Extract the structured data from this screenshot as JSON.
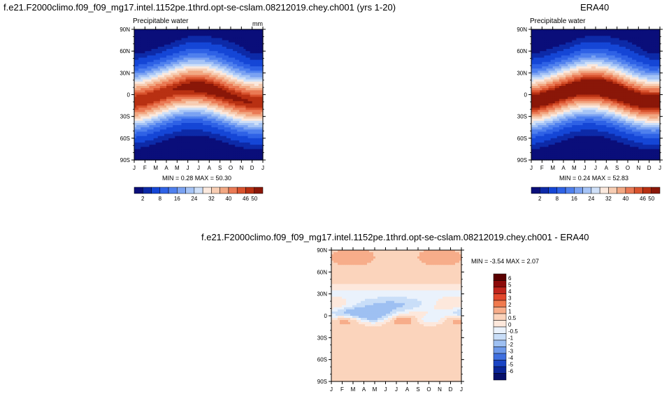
{
  "panels": {
    "model": {
      "title": "f.e21.F2000climo.f09_f09_mg17.intel.1152pe.1thrd.opt-se-cslam.08212019.chey.ch001 (yrs 1-20)",
      "left_label": "Precipitable water",
      "right_label": "mm",
      "minmax": "MIN =   0.28 MAX =  50.30"
    },
    "obs": {
      "title": "ERA40",
      "left_label": "Precipitable water",
      "minmax": "MIN =   0.24 MAX =  52.83"
    },
    "diff": {
      "title": "f.e21.F2000climo.f09_f09_mg17.intel.1152pe.1thrd.opt-se-cslam.08212019.chey.ch001 - ERA40",
      "minmax": "MIN =  -3.54 MAX =   2.07"
    }
  },
  "chart_data": [
    {
      "type": "heatmap",
      "title": "f.e21.F2000climo.f09_f09_mg17.intel.1152pe.1thrd.opt-se-cslam.08212019.chey.ch001 (yrs 1-20)",
      "x_tick_labels": [
        "J",
        "F",
        "M",
        "A",
        "M",
        "J",
        "J",
        "A",
        "S",
        "O",
        "N",
        "D",
        "J"
      ],
      "y_tick_labels": [
        "90N",
        "60N",
        "30N",
        "0",
        "30S",
        "60S",
        "90S"
      ],
      "colorbar_labels": [
        "2",
        "8",
        "16",
        "24",
        "32",
        "40",
        "46",
        "50"
      ],
      "min": 0.28,
      "max": 50.3,
      "units": "mm"
    },
    {
      "type": "heatmap",
      "title": "ERA40",
      "x_tick_labels": [
        "J",
        "F",
        "M",
        "A",
        "M",
        "J",
        "J",
        "A",
        "S",
        "O",
        "N",
        "D",
        "J"
      ],
      "y_tick_labels": [
        "90N",
        "60N",
        "30N",
        "0",
        "30S",
        "60S",
        "90S"
      ],
      "colorbar_labels": [
        "2",
        "8",
        "16",
        "24",
        "32",
        "40",
        "46",
        "50"
      ],
      "min": 0.24,
      "max": 52.83
    },
    {
      "type": "heatmap",
      "title": "f.e21.F2000climo.f09_f09_mg17.intel.1152pe.1thrd.opt-se-cslam.08212019.chey.ch001 - ERA40",
      "x_tick_labels": [
        "J",
        "F",
        "M",
        "A",
        "M",
        "J",
        "J",
        "A",
        "S",
        "O",
        "N",
        "D",
        "J"
      ],
      "y_tick_labels": [
        "90N",
        "60N",
        "30N",
        "0",
        "30S",
        "60S",
        "90S"
      ],
      "colorbar_labels": [
        "6",
        "5",
        "4",
        "3",
        "2",
        "1",
        "0.5",
        "0",
        "-0.5",
        "-1",
        "-2",
        "-3",
        "-4",
        "-5",
        "-6"
      ],
      "min": -3.54,
      "max": 2.07
    }
  ],
  "colors": {
    "abs_palette": [
      "#0a0e7a",
      "#0d2aa8",
      "#1546d6",
      "#2f62e6",
      "#4f80ee",
      "#7aa2f2",
      "#a6c4f6",
      "#cfe0f8",
      "#fbe9de",
      "#f7cdb3",
      "#f2a883",
      "#ea7a55",
      "#d9532e",
      "#b83012",
      "#8a1708"
    ],
    "diff_palette": [
      "#5a0000",
      "#8c0a0a",
      "#c0241c",
      "#e2472c",
      "#f07a4e",
      "#f7ad8a",
      "#fbd4bc",
      "#fde8dc",
      "#eaf2fc",
      "#c9def8",
      "#9ec0f2",
      "#6e99ea",
      "#3f6fdf",
      "#1a44c4",
      "#0a2598",
      "#060f6a"
    ]
  }
}
